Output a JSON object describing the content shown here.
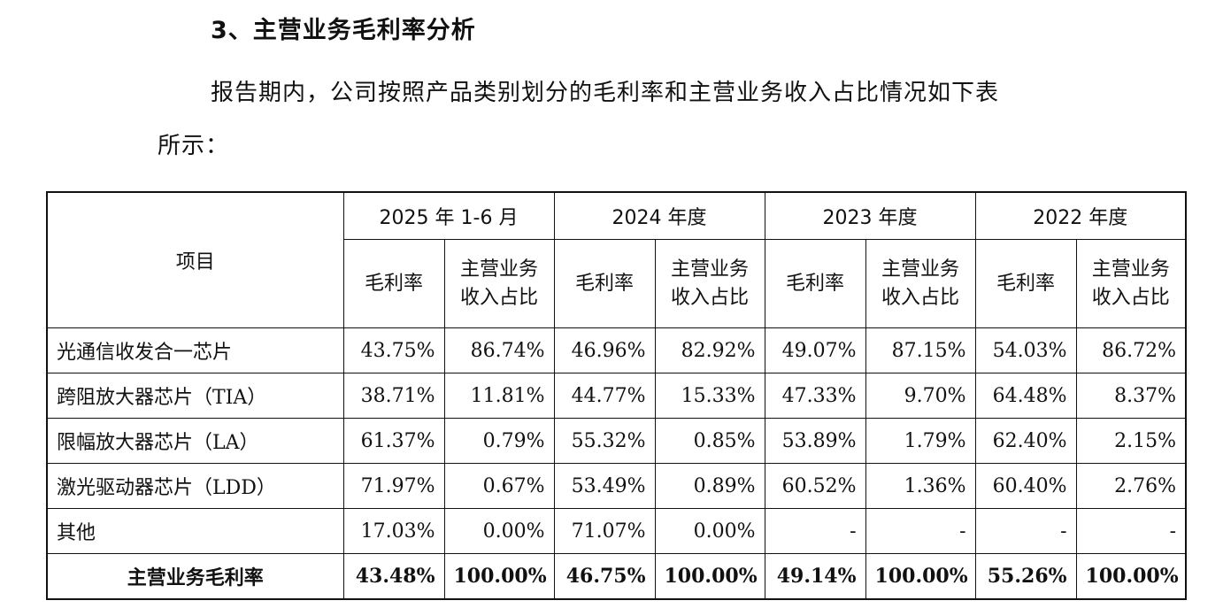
{
  "heading": "3、主营业务毛利率分析",
  "paragraph_line1": "报告期内，公司按照产品类别划分的毛利率和主营业务收入占比情况如下表",
  "paragraph_line2": "所示：",
  "table": {
    "item_header": "项目",
    "periods": [
      "2025 年 1-6 月",
      "2024 年度",
      "2023 年度",
      "2022 年度"
    ],
    "sub_headers": [
      "毛利率",
      "主营业务收入占比"
    ],
    "rows": [
      {
        "label": "光通信收发合一芯片",
        "values": [
          "43.75%",
          "86.74%",
          "46.96%",
          "82.92%",
          "49.07%",
          "87.15%",
          "54.03%",
          "86.72%"
        ]
      },
      {
        "label": "跨阻放大器芯片（TIA）",
        "values": [
          "38.71%",
          "11.81%",
          "44.77%",
          "15.33%",
          "47.33%",
          "9.70%",
          "64.48%",
          "8.37%"
        ]
      },
      {
        "label": "限幅放大器芯片（LA）",
        "values": [
          "61.37%",
          "0.79%",
          "55.32%",
          "0.85%",
          "53.89%",
          "1.79%",
          "62.40%",
          "2.15%"
        ]
      },
      {
        "label": "激光驱动器芯片（LDD）",
        "values": [
          "71.97%",
          "0.67%",
          "53.49%",
          "0.89%",
          "60.52%",
          "1.36%",
          "60.40%",
          "2.76%"
        ]
      },
      {
        "label": "其他",
        "values": [
          "17.03%",
          "0.00%",
          "71.07%",
          "0.00%",
          "-",
          "-",
          "-",
          "-"
        ]
      }
    ],
    "total": {
      "label": "主营业务毛利率",
      "values": [
        "43.48%",
        "100.00%",
        "46.75%",
        "100.00%",
        "49.14%",
        "100.00%",
        "55.26%",
        "100.00%"
      ]
    }
  }
}
